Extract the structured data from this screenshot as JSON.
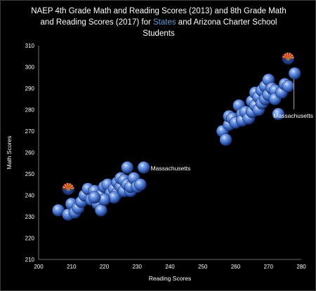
{
  "chart_data": {
    "type": "scatter",
    "title_parts": [
      "NAEP 4th Grade Math and Reading Scores (2013) and 8th Grade Math and Reading Scores (2017) for ",
      "States",
      " and Arizona Charter School Students"
    ],
    "xlabel": "Reading Scores",
    "ylabel": "Math Scores",
    "xlim": [
      200,
      280
    ],
    "ylim": [
      210,
      310
    ],
    "xticks": [
      200,
      210,
      220,
      230,
      240,
      250,
      260,
      270,
      280
    ],
    "yticks": [
      210,
      220,
      230,
      240,
      250,
      260,
      270,
      280,
      290,
      300,
      310
    ],
    "grid": false,
    "colors": {
      "states": "#4a78c8",
      "highlight": "#5b9bd5",
      "arizona_flag_sun": "#f0a020",
      "arizona_flag_red": "#c8202a",
      "arizona_flag_blue": "#1f3f8f"
    },
    "series": [
      {
        "name": "States",
        "points": [
          [
            206,
            233
          ],
          [
            209,
            231
          ],
          [
            210,
            236
          ],
          [
            211,
            232
          ],
          [
            212,
            234
          ],
          [
            213,
            237
          ],
          [
            214,
            240
          ],
          [
            215,
            243
          ],
          [
            216,
            238
          ],
          [
            217,
            242
          ],
          [
            218,
            236
          ],
          [
            219,
            233
          ],
          [
            219,
            240
          ],
          [
            220,
            244
          ],
          [
            221,
            245
          ],
          [
            222,
            241
          ],
          [
            223,
            243
          ],
          [
            224,
            246
          ],
          [
            224,
            241
          ],
          [
            225,
            244
          ],
          [
            225,
            248
          ],
          [
            226,
            242
          ],
          [
            226,
            247
          ],
          [
            227,
            253
          ],
          [
            227,
            245
          ],
          [
            228,
            242
          ],
          [
            228,
            244
          ],
          [
            229,
            248
          ],
          [
            230,
            244
          ],
          [
            231,
            245
          ],
          [
            232,
            253
          ],
          [
            223,
            239
          ],
          [
            220,
            238
          ],
          [
            217,
            239
          ],
          [
            256,
            270
          ],
          [
            257,
            266
          ],
          [
            258,
            273
          ],
          [
            258,
            277
          ],
          [
            259,
            276
          ],
          [
            260,
            274
          ],
          [
            261,
            282
          ],
          [
            262,
            278
          ],
          [
            262,
            275
          ],
          [
            263,
            279
          ],
          [
            264,
            276
          ],
          [
            265,
            279
          ],
          [
            265,
            284
          ],
          [
            266,
            282
          ],
          [
            266,
            288
          ],
          [
            267,
            286
          ],
          [
            267,
            280
          ],
          [
            268,
            289
          ],
          [
            268,
            283
          ],
          [
            269,
            291
          ],
          [
            269,
            285
          ],
          [
            270,
            294
          ],
          [
            270,
            287
          ],
          [
            271,
            290
          ],
          [
            272,
            289
          ],
          [
            272,
            285
          ],
          [
            273,
            278
          ],
          [
            274,
            288
          ],
          [
            275,
            292
          ],
          [
            276,
            291
          ],
          [
            278,
            297
          ]
        ]
      },
      {
        "name": "Arizona Charter School",
        "points": [
          [
            209,
            243
          ],
          [
            276,
            304
          ]
        ]
      }
    ],
    "annotations": [
      {
        "text": "Massachusetts",
        "x": 232,
        "y": 253
      },
      {
        "text": "Massachusetts",
        "x": 278,
        "y": 297
      }
    ]
  }
}
